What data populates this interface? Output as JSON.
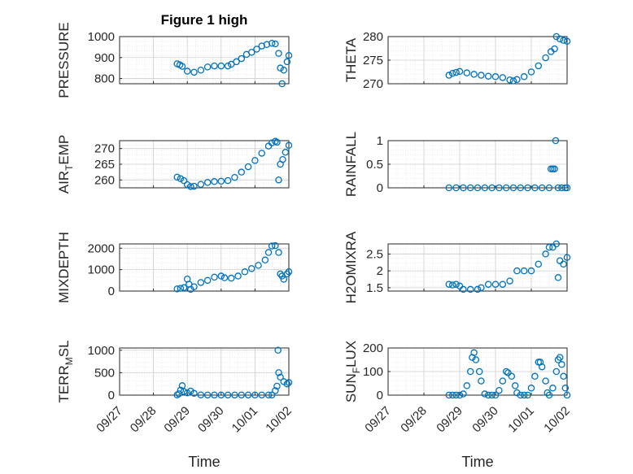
{
  "figure": {
    "title": "Figure 1 high",
    "marker_color": "#0072bd",
    "axis_color": "#262626",
    "grid_color": "#dfdfdf"
  },
  "chart_data": [
    {
      "type": "scatter",
      "title": "Figure 1 high",
      "ylabel": "PRESSURE",
      "ylim": [
        775,
        1000
      ],
      "yticks": [
        "1000",
        "900",
        "800"
      ],
      "ytick_values": [
        1000,
        900,
        800
      ],
      "xlim": [
        0,
        5
      ],
      "grid": true,
      "points": [
        [
          1.7,
          870
        ],
        [
          1.78,
          865
        ],
        [
          1.85,
          858
        ],
        [
          2.0,
          835
        ],
        [
          2.2,
          830
        ],
        [
          2.4,
          840
        ],
        [
          2.6,
          855
        ],
        [
          2.8,
          860
        ],
        [
          3.0,
          860
        ],
        [
          3.2,
          860
        ],
        [
          3.3,
          868
        ],
        [
          3.45,
          880
        ],
        [
          3.6,
          895
        ],
        [
          3.75,
          915
        ],
        [
          3.9,
          925
        ],
        [
          4.05,
          940
        ],
        [
          4.2,
          955
        ],
        [
          4.35,
          962
        ],
        [
          4.5,
          968
        ],
        [
          4.6,
          965
        ],
        [
          4.7,
          920
        ],
        [
          4.75,
          850
        ],
        [
          4.8,
          775
        ],
        [
          4.85,
          840
        ],
        [
          4.95,
          880
        ],
        [
          5.0,
          910
        ]
      ]
    },
    {
      "type": "scatter",
      "ylabel": "THETA",
      "ylim": [
        270,
        280
      ],
      "yticks": [
        "280",
        "275",
        "270"
      ],
      "ytick_values": [
        280,
        275,
        270
      ],
      "xlim": [
        0,
        5
      ],
      "grid": true,
      "points": [
        [
          1.7,
          271.8
        ],
        [
          1.8,
          272.2
        ],
        [
          1.9,
          272.4
        ],
        [
          2.0,
          272.6
        ],
        [
          2.2,
          272.3
        ],
        [
          2.4,
          272.0
        ],
        [
          2.6,
          271.8
        ],
        [
          2.8,
          271.6
        ],
        [
          3.0,
          271.5
        ],
        [
          3.2,
          271.3
        ],
        [
          3.4,
          270.8
        ],
        [
          3.5,
          270.6
        ],
        [
          3.6,
          270.9
        ],
        [
          3.8,
          271.5
        ],
        [
          4.0,
          272.5
        ],
        [
          4.2,
          273.8
        ],
        [
          4.4,
          275.5
        ],
        [
          4.55,
          276.8
        ],
        [
          4.65,
          277.4
        ],
        [
          4.7,
          280.0
        ],
        [
          4.8,
          279.5
        ],
        [
          4.9,
          279.2
        ],
        [
          5.0,
          279.0
        ]
      ]
    },
    {
      "type": "scatter",
      "ylabel": "AIR_TEMP",
      "ylim": [
        257.5,
        272.5
      ],
      "yticks": [
        "270",
        "265",
        "260"
      ],
      "ytick_values": [
        270,
        265,
        260
      ],
      "xlim": [
        0,
        5
      ],
      "grid": true,
      "points": [
        [
          1.7,
          260.9
        ],
        [
          1.8,
          260.4
        ],
        [
          1.9,
          259.8
        ],
        [
          2.0,
          258.5
        ],
        [
          2.1,
          257.9
        ],
        [
          2.2,
          258.0
        ],
        [
          2.4,
          258.6
        ],
        [
          2.6,
          259.2
        ],
        [
          2.8,
          259.5
        ],
        [
          3.0,
          259.6
        ],
        [
          3.2,
          259.8
        ],
        [
          3.4,
          260.8
        ],
        [
          3.6,
          262.5
        ],
        [
          3.8,
          264.2
        ],
        [
          4.0,
          266.2
        ],
        [
          4.2,
          268.5
        ],
        [
          4.4,
          270.8
        ],
        [
          4.5,
          271.8
        ],
        [
          4.6,
          272.3
        ],
        [
          4.65,
          272.0
        ],
        [
          4.7,
          260.0
        ],
        [
          4.75,
          265.0
        ],
        [
          4.82,
          266.5
        ],
        [
          4.9,
          268.8
        ],
        [
          5.0,
          271.0
        ]
      ]
    },
    {
      "type": "scatter",
      "ylabel": "RAINFALL",
      "ylim": [
        0,
        1
      ],
      "yticks": [
        "1",
        "0.5",
        "0"
      ],
      "ytick_values": [
        1,
        0.5,
        0
      ],
      "xlim": [
        0,
        5
      ],
      "grid": true,
      "points": [
        [
          1.7,
          0
        ],
        [
          1.9,
          0
        ],
        [
          2.1,
          0
        ],
        [
          2.3,
          0
        ],
        [
          2.5,
          0
        ],
        [
          2.7,
          0
        ],
        [
          2.9,
          0
        ],
        [
          3.1,
          0
        ],
        [
          3.3,
          0
        ],
        [
          3.5,
          0
        ],
        [
          3.7,
          0
        ],
        [
          3.9,
          0
        ],
        [
          4.1,
          0
        ],
        [
          4.3,
          0
        ],
        [
          4.5,
          0
        ],
        [
          4.55,
          0.4
        ],
        [
          4.6,
          0.4
        ],
        [
          4.65,
          0.4
        ],
        [
          4.68,
          1.0
        ],
        [
          4.75,
          0
        ],
        [
          4.85,
          0
        ],
        [
          4.95,
          0
        ],
        [
          5.0,
          0
        ]
      ]
    },
    {
      "type": "scatter",
      "ylabel": "MIXDEPTH",
      "ylim": [
        0,
        2200
      ],
      "yticks": [
        "2000",
        "1000",
        "0"
      ],
      "ytick_values": [
        2000,
        1000,
        0
      ],
      "xlim": [
        0,
        5
      ],
      "grid": true,
      "points": [
        [
          1.7,
          100
        ],
        [
          1.8,
          130
        ],
        [
          1.9,
          160
        ],
        [
          2.0,
          560
        ],
        [
          2.05,
          320
        ],
        [
          2.1,
          80
        ],
        [
          2.2,
          200
        ],
        [
          2.4,
          400
        ],
        [
          2.6,
          500
        ],
        [
          2.8,
          650
        ],
        [
          3.0,
          700
        ],
        [
          3.1,
          620
        ],
        [
          3.3,
          600
        ],
        [
          3.5,
          700
        ],
        [
          3.7,
          900
        ],
        [
          3.9,
          1050
        ],
        [
          4.1,
          1200
        ],
        [
          4.3,
          1450
        ],
        [
          4.4,
          1800
        ],
        [
          4.5,
          2100
        ],
        [
          4.6,
          2120
        ],
        [
          4.7,
          1800
        ],
        [
          4.75,
          800
        ],
        [
          4.8,
          700
        ],
        [
          4.85,
          550
        ],
        [
          4.95,
          800
        ],
        [
          5.0,
          900
        ]
      ]
    },
    {
      "type": "scatter",
      "ylabel": "H2OMIXRA",
      "ylim": [
        1.4,
        2.8
      ],
      "yticks": [
        "2.5",
        "2",
        "1.5"
      ],
      "ytick_values": [
        2.5,
        2.0,
        1.5
      ],
      "xlim": [
        0,
        5
      ],
      "grid": true,
      "points": [
        [
          1.7,
          1.6
        ],
        [
          1.8,
          1.58
        ],
        [
          1.9,
          1.6
        ],
        [
          2.0,
          1.55
        ],
        [
          2.1,
          1.45
        ],
        [
          2.3,
          1.45
        ],
        [
          2.5,
          1.45
        ],
        [
          2.6,
          1.5
        ],
        [
          2.8,
          1.6
        ],
        [
          3.0,
          1.6
        ],
        [
          3.2,
          1.6
        ],
        [
          3.4,
          1.7
        ],
        [
          3.6,
          2.0
        ],
        [
          3.8,
          2.0
        ],
        [
          4.0,
          2.0
        ],
        [
          4.2,
          2.2
        ],
        [
          4.4,
          2.5
        ],
        [
          4.5,
          2.7
        ],
        [
          4.6,
          2.7
        ],
        [
          4.7,
          2.8
        ],
        [
          4.75,
          1.8
        ],
        [
          4.8,
          2.3
        ],
        [
          4.9,
          2.2
        ],
        [
          5.0,
          2.4
        ]
      ]
    },
    {
      "type": "scatter",
      "ylabel": "TERR_MSL",
      "ylim": [
        0,
        1050
      ],
      "yticks": [
        "1000",
        "500",
        "0"
      ],
      "ytick_values": [
        1000,
        500,
        0
      ],
      "xlim": [
        0,
        5
      ],
      "grid": true,
      "xticks": [
        "09/27",
        "09/28",
        "09/29",
        "09/30",
        "10/01",
        "10/02"
      ],
      "xtick_values": [
        0,
        1,
        2,
        3,
        4,
        5
      ],
      "xlabel": "Time",
      "points": [
        [
          1.7,
          5
        ],
        [
          1.75,
          30
        ],
        [
          1.8,
          110
        ],
        [
          1.85,
          210
        ],
        [
          1.9,
          80
        ],
        [
          2.0,
          50
        ],
        [
          2.1,
          90
        ],
        [
          2.2,
          40
        ],
        [
          2.4,
          5
        ],
        [
          2.6,
          3
        ],
        [
          2.8,
          3
        ],
        [
          3.0,
          3
        ],
        [
          3.2,
          3
        ],
        [
          3.4,
          3
        ],
        [
          3.6,
          3
        ],
        [
          3.8,
          3
        ],
        [
          4.0,
          3
        ],
        [
          4.2,
          3
        ],
        [
          4.4,
          3
        ],
        [
          4.5,
          3
        ],
        [
          4.6,
          100
        ],
        [
          4.65,
          200
        ],
        [
          4.68,
          1000
        ],
        [
          4.7,
          500
        ],
        [
          4.75,
          400
        ],
        [
          4.85,
          300
        ],
        [
          4.95,
          250
        ],
        [
          5.0,
          280
        ]
      ]
    },
    {
      "type": "scatter",
      "ylabel": "SUN_FLUX",
      "ylim": [
        0,
        200
      ],
      "yticks": [
        "200",
        "100",
        "0"
      ],
      "ytick_values": [
        200,
        100,
        0
      ],
      "xlim": [
        0,
        5
      ],
      "grid": true,
      "xticks": [
        "09/27",
        "09/28",
        "09/29",
        "09/30",
        "10/01",
        "10/02"
      ],
      "xtick_values": [
        0,
        1,
        2,
        3,
        4,
        5
      ],
      "xlabel": "Time",
      "points": [
        [
          1.7,
          0
        ],
        [
          1.8,
          0
        ],
        [
          1.9,
          0
        ],
        [
          2.0,
          0
        ],
        [
          2.1,
          5
        ],
        [
          2.2,
          40
        ],
        [
          2.3,
          100
        ],
        [
          2.35,
          160
        ],
        [
          2.4,
          180
        ],
        [
          2.45,
          150
        ],
        [
          2.55,
          100
        ],
        [
          2.6,
          60
        ],
        [
          2.7,
          5
        ],
        [
          2.8,
          0
        ],
        [
          2.9,
          0
        ],
        [
          3.0,
          0
        ],
        [
          3.1,
          20
        ],
        [
          3.2,
          60
        ],
        [
          3.3,
          100
        ],
        [
          3.35,
          95
        ],
        [
          3.45,
          80
        ],
        [
          3.55,
          40
        ],
        [
          3.6,
          10
        ],
        [
          3.7,
          0
        ],
        [
          3.8,
          0
        ],
        [
          3.9,
          0
        ],
        [
          4.0,
          30
        ],
        [
          4.1,
          80
        ],
        [
          4.2,
          140
        ],
        [
          4.25,
          140
        ],
        [
          4.3,
          120
        ],
        [
          4.4,
          60
        ],
        [
          4.45,
          10
        ],
        [
          4.5,
          0
        ],
        [
          4.6,
          30
        ],
        [
          4.7,
          100
        ],
        [
          4.75,
          150
        ],
        [
          4.8,
          160
        ],
        [
          4.85,
          130
        ],
        [
          4.9,
          80
        ],
        [
          4.95,
          30
        ],
        [
          5.0,
          0
        ]
      ]
    }
  ]
}
